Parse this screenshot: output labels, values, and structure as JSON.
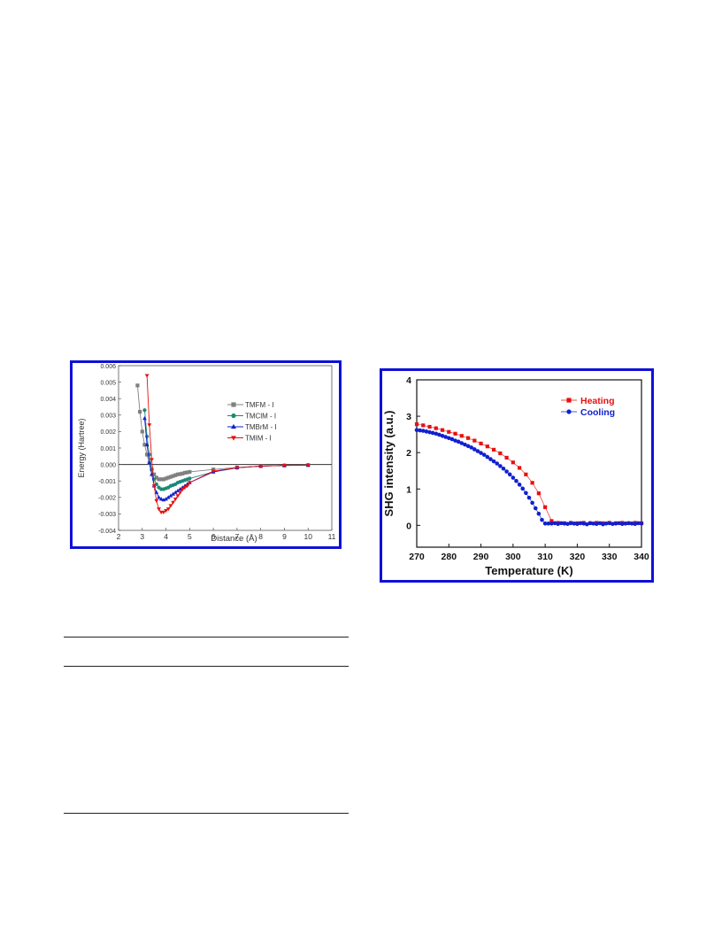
{
  "chart_data": [
    {
      "type": "line",
      "title": "",
      "xlabel": "Distance (Å)",
      "ylabel": "Energy (Hartree)",
      "xlim": [
        2,
        11
      ],
      "ylim": [
        -0.004,
        0.006
      ],
      "xticks": [
        "2",
        "3",
        "4",
        "5",
        "6",
        "7",
        "8",
        "9",
        "10",
        "11"
      ],
      "yticks": [
        "-0.004",
        "-0.003",
        "-0.002",
        "-0.001",
        "0.000",
        "0.001",
        "0.002",
        "0.003",
        "0.004",
        "0.005",
        "0.006"
      ],
      "legend_position": "top-right",
      "zero_line": true,
      "grid": false,
      "series": [
        {
          "name": "TMFM - I",
          "color": "#808080",
          "marker": "square",
          "x": [
            2.8,
            2.9,
            3.0,
            3.1,
            3.2,
            3.3,
            3.4,
            3.5,
            3.6,
            3.7,
            3.8,
            3.9,
            4.0,
            4.1,
            4.2,
            4.3,
            4.4,
            4.5,
            4.6,
            4.7,
            4.8,
            4.9,
            5.0,
            6.0,
            7.0,
            8.0,
            9.0,
            10.0
          ],
          "y": [
            0.0048,
            0.0032,
            0.002,
            0.0012,
            0.0006,
            0.0001,
            -0.0003,
            -0.0006,
            -0.0008,
            -0.0009,
            -0.0009,
            -0.0009,
            -0.00085,
            -0.0008,
            -0.00075,
            -0.0007,
            -0.00065,
            -0.0006,
            -0.00058,
            -0.00055,
            -0.0005,
            -0.00048,
            -0.00045,
            -0.0003,
            -0.00018,
            -0.0001,
            -6e-05,
            -4e-05
          ]
        },
        {
          "name": "TMClM - I",
          "color": "#1a8a78",
          "marker": "circle",
          "x": [
            3.1,
            3.2,
            3.3,
            3.4,
            3.5,
            3.6,
            3.7,
            3.8,
            3.9,
            4.0,
            4.1,
            4.2,
            4.3,
            4.4,
            4.5,
            4.6,
            4.7,
            4.8,
            4.9,
            5.0,
            6.0,
            7.0,
            8.0,
            9.0,
            10.0
          ],
          "y": [
            0.0033,
            0.0017,
            0.0006,
            -0.0003,
            -0.0009,
            -0.0012,
            -0.0014,
            -0.0015,
            -0.0015,
            -0.00145,
            -0.0014,
            -0.0013,
            -0.00125,
            -0.0012,
            -0.0011,
            -0.00105,
            -0.001,
            -0.00095,
            -0.0009,
            -0.00085,
            -0.00045,
            -0.0002,
            -0.0001,
            -6e-05,
            -4e-05
          ]
        },
        {
          "name": "TMBrM - I",
          "color": "#1020d0",
          "marker": "triangle-up",
          "x": [
            3.1,
            3.2,
            3.3,
            3.4,
            3.5,
            3.6,
            3.7,
            3.8,
            3.9,
            4.0,
            4.1,
            4.2,
            4.3,
            4.4,
            4.5,
            4.6,
            4.7,
            4.8,
            4.9,
            5.0,
            6.0,
            7.0,
            8.0,
            9.0,
            10.0
          ],
          "y": [
            0.0028,
            0.0012,
            0.0001,
            -0.0006,
            -0.0013,
            -0.0017,
            -0.002,
            -0.0021,
            -0.00215,
            -0.0021,
            -0.002,
            -0.0019,
            -0.0018,
            -0.0017,
            -0.0016,
            -0.0015,
            -0.0014,
            -0.0013,
            -0.0012,
            -0.0011,
            -0.00045,
            -0.0002,
            -0.0001,
            -6e-05,
            -4e-05
          ]
        },
        {
          "name": "TMIM - I",
          "color": "#e81010",
          "marker": "triangle-down",
          "x": [
            3.2,
            3.3,
            3.4,
            3.5,
            3.6,
            3.7,
            3.8,
            3.9,
            4.0,
            4.1,
            4.2,
            4.3,
            4.4,
            4.5,
            4.6,
            4.7,
            4.8,
            4.9,
            5.0,
            6.0,
            7.0,
            8.0,
            9.0,
            10.0
          ],
          "y": [
            0.0054,
            0.0024,
            0.0003,
            -0.0013,
            -0.0022,
            -0.0027,
            -0.0029,
            -0.0029,
            -0.0028,
            -0.0027,
            -0.0025,
            -0.0023,
            -0.0021,
            -0.0019,
            -0.0017,
            -0.0015,
            -0.0014,
            -0.0013,
            -0.0011,
            -0.0004,
            -0.0002,
            -0.0001,
            -6e-05,
            -4e-05
          ]
        }
      ]
    },
    {
      "type": "scatter",
      "title": "",
      "xlabel": "Temperature (K)",
      "ylabel": "SHG intensity (a.u.)",
      "xlim": [
        270,
        340
      ],
      "ylim": [
        -0.6,
        4
      ],
      "xticks": [
        "270",
        "280",
        "290",
        "300",
        "310",
        "320",
        "330",
        "340"
      ],
      "yticks": [
        "0",
        "1",
        "2",
        "3",
        "4"
      ],
      "legend_position": "top-right",
      "grid": false,
      "series": [
        {
          "name": "Heating",
          "color": "#e81010",
          "marker": "square",
          "line": true,
          "x": [
            270,
            272,
            274,
            276,
            278,
            280,
            282,
            284,
            286,
            288,
            290,
            292,
            294,
            296,
            298,
            300,
            302,
            304,
            306,
            308,
            310,
            312,
            314,
            316,
            318,
            320,
            322,
            324,
            326,
            328,
            330,
            332,
            334,
            336,
            338,
            340
          ],
          "y": [
            2.78,
            2.75,
            2.71,
            2.67,
            2.62,
            2.57,
            2.52,
            2.46,
            2.4,
            2.33,
            2.25,
            2.17,
            2.08,
            1.98,
            1.86,
            1.73,
            1.58,
            1.4,
            1.17,
            0.88,
            0.5,
            0.12,
            0.07,
            0.06,
            0.07,
            0.06,
            0.07,
            0.06,
            0.07,
            0.06,
            0.07,
            0.06,
            0.07,
            0.06,
            0.07,
            0.06
          ]
        },
        {
          "name": "Cooling",
          "color": "#1020d0",
          "marker": "circle",
          "line": true,
          "x": [
            270,
            271,
            272,
            273,
            274,
            275,
            276,
            277,
            278,
            279,
            280,
            281,
            282,
            283,
            284,
            285,
            286,
            287,
            288,
            289,
            290,
            291,
            292,
            293,
            294,
            295,
            296,
            297,
            298,
            299,
            300,
            301,
            302,
            303,
            304,
            305,
            306,
            307,
            308,
            309,
            310,
            311,
            312,
            313,
            314,
            315,
            316,
            317,
            318,
            319,
            320,
            321,
            322,
            323,
            324,
            325,
            326,
            327,
            328,
            329,
            330,
            331,
            332,
            333,
            334,
            335,
            336,
            337,
            338,
            339,
            340
          ],
          "y": [
            2.62,
            2.61,
            2.6,
            2.58,
            2.56,
            2.54,
            2.52,
            2.49,
            2.46,
            2.43,
            2.4,
            2.37,
            2.33,
            2.3,
            2.26,
            2.22,
            2.18,
            2.14,
            2.09,
            2.04,
            1.99,
            1.94,
            1.88,
            1.82,
            1.76,
            1.7,
            1.63,
            1.56,
            1.48,
            1.4,
            1.31,
            1.22,
            1.12,
            1.01,
            0.89,
            0.76,
            0.62,
            0.47,
            0.32,
            0.15,
            0.05,
            0.05,
            0.05,
            0.06,
            0.04,
            0.06,
            0.05,
            0.04,
            0.06,
            0.05,
            0.04,
            0.06,
            0.05,
            0.03,
            0.06,
            0.05,
            0.04,
            0.06,
            0.03,
            0.05,
            0.06,
            0.04,
            0.05,
            0.06,
            0.04,
            0.05,
            0.06,
            0.05,
            0.04,
            0.06,
            0.05
          ]
        }
      ]
    }
  ]
}
